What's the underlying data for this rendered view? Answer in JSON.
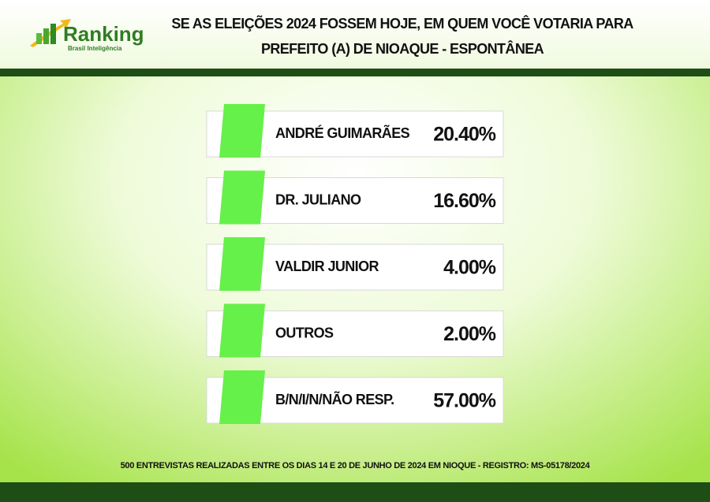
{
  "logo": {
    "name": "Ranking",
    "tagline": "Brasil Inteligência"
  },
  "header": {
    "title_line1": "SE AS ELEIÇÕES 2024 FOSSEM HOJE, EM QUEM VOCÊ VOTARIA PARA",
    "title_line2": "PREFEITO (A) DE NIOAQUE - ESPONTÂNEA"
  },
  "rows": [
    {
      "name": "ANDRÉ GUIMARÃES",
      "value": "20.40%"
    },
    {
      "name": "DR. JULIANO",
      "value": "16.60%"
    },
    {
      "name": "VALDIR JUNIOR",
      "value": "4.00%"
    },
    {
      "name": "OUTROS",
      "value": "2.00%"
    },
    {
      "name": "B/N/I/N/NÃO RESP.",
      "value": "57.00%"
    }
  ],
  "footer": "500 ENTREVISTAS REALIZADAS ENTRE OS DIAS 14 E 20 DE JUNHO DE 2024 EM NIOQUE - REGISTRO: MS-05178/2024"
}
